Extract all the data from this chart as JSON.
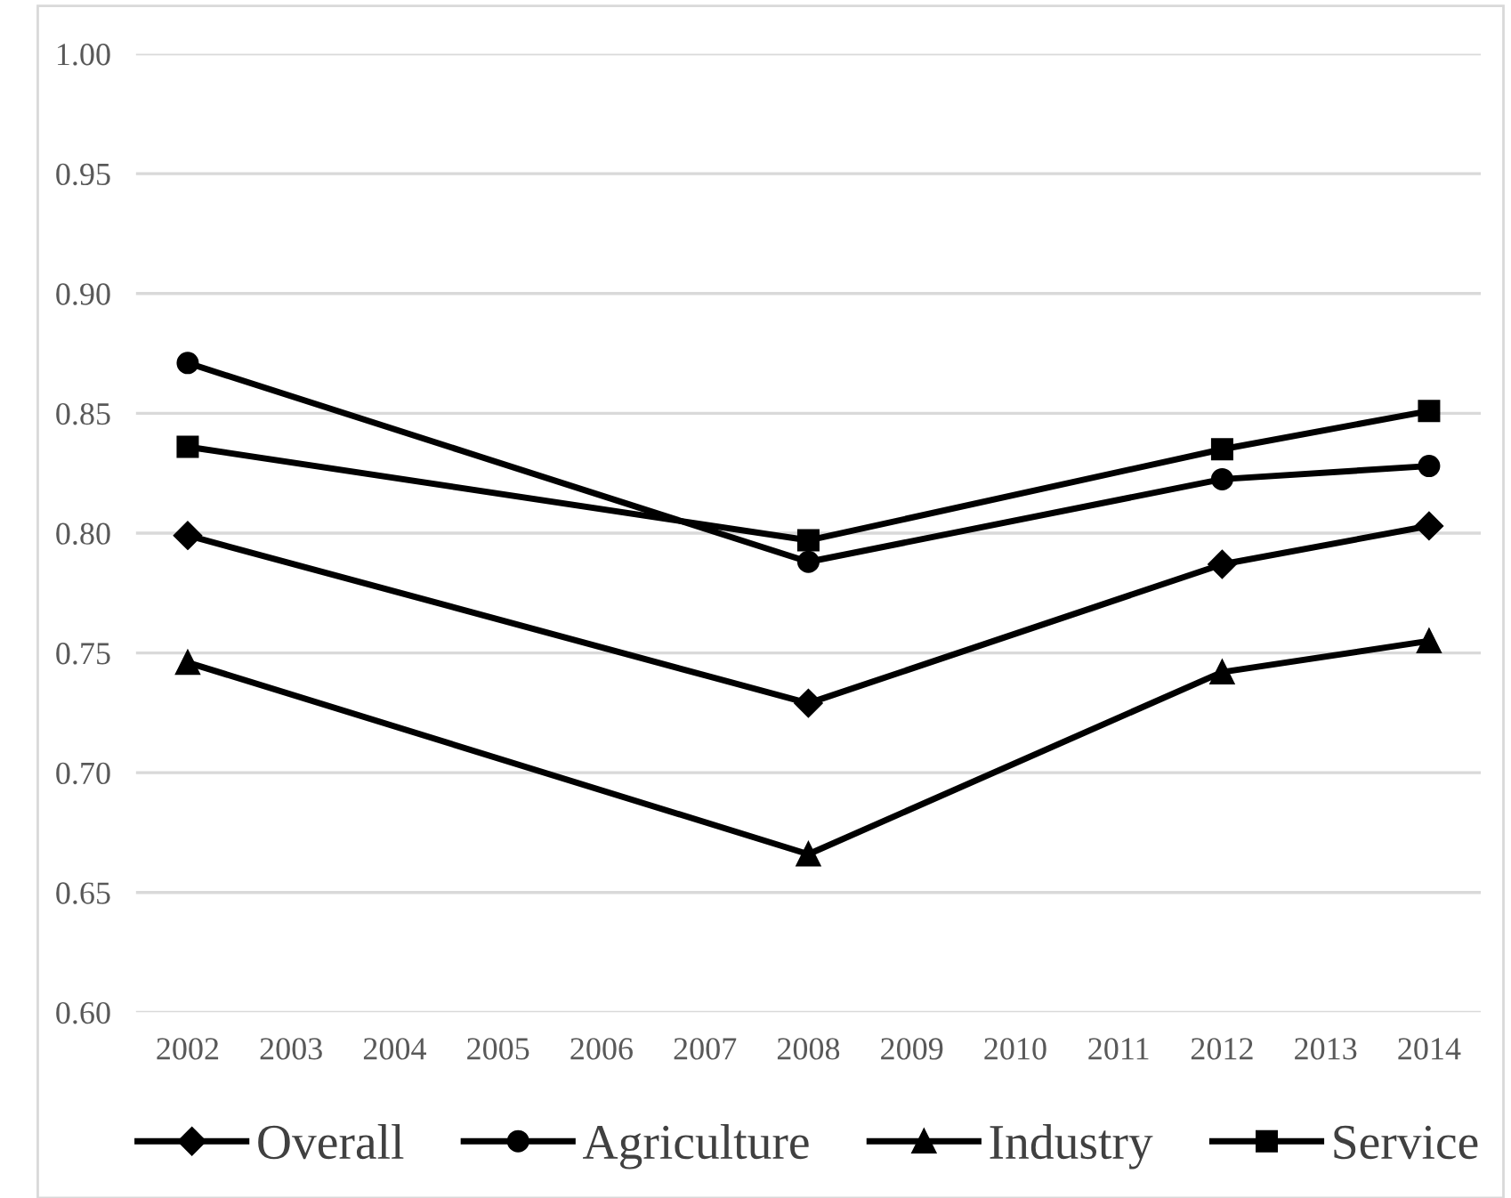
{
  "chart_data": {
    "type": "line",
    "x": [
      2002,
      2008,
      2012,
      2014
    ],
    "series": [
      {
        "name": "Overall",
        "color": "#000000",
        "marker": "diamond",
        "values": [
          0.799,
          0.729,
          0.787,
          0.803
        ]
      },
      {
        "name": "Agriculture",
        "color": "#000000",
        "marker": "circle",
        "values": [
          0.871,
          0.788,
          0.8225,
          0.828
        ]
      },
      {
        "name": "Industry",
        "color": "#000000",
        "marker": "triangle",
        "values": [
          0.746,
          0.666,
          0.742,
          0.755
        ]
      },
      {
        "name": "Service",
        "color": "#000000",
        "marker": "square",
        "values": [
          0.836,
          0.797,
          0.835,
          0.851
        ]
      }
    ],
    "xlim": [
      2001.5,
      2014.5
    ],
    "xticks": [
      2002,
      2003,
      2004,
      2005,
      2006,
      2007,
      2008,
      2009,
      2010,
      2011,
      2012,
      2013,
      2014
    ],
    "ylim": [
      0.6,
      1.0
    ],
    "yticks": [
      {
        "value": 0.6,
        "label": "0.60"
      },
      {
        "value": 0.65,
        "label": "0.65"
      },
      {
        "value": 0.7,
        "label": "0.70"
      },
      {
        "value": 0.75,
        "label": "0.75"
      },
      {
        "value": 0.8,
        "label": "0.80"
      },
      {
        "value": 0.85,
        "label": "0.85"
      },
      {
        "value": 0.9,
        "label": "0.90"
      },
      {
        "value": 0.95,
        "label": "0.95"
      },
      {
        "value": 1.0,
        "label": "1.00"
      }
    ],
    "grid": "y",
    "legend": "bottom",
    "line_style": "solid"
  }
}
